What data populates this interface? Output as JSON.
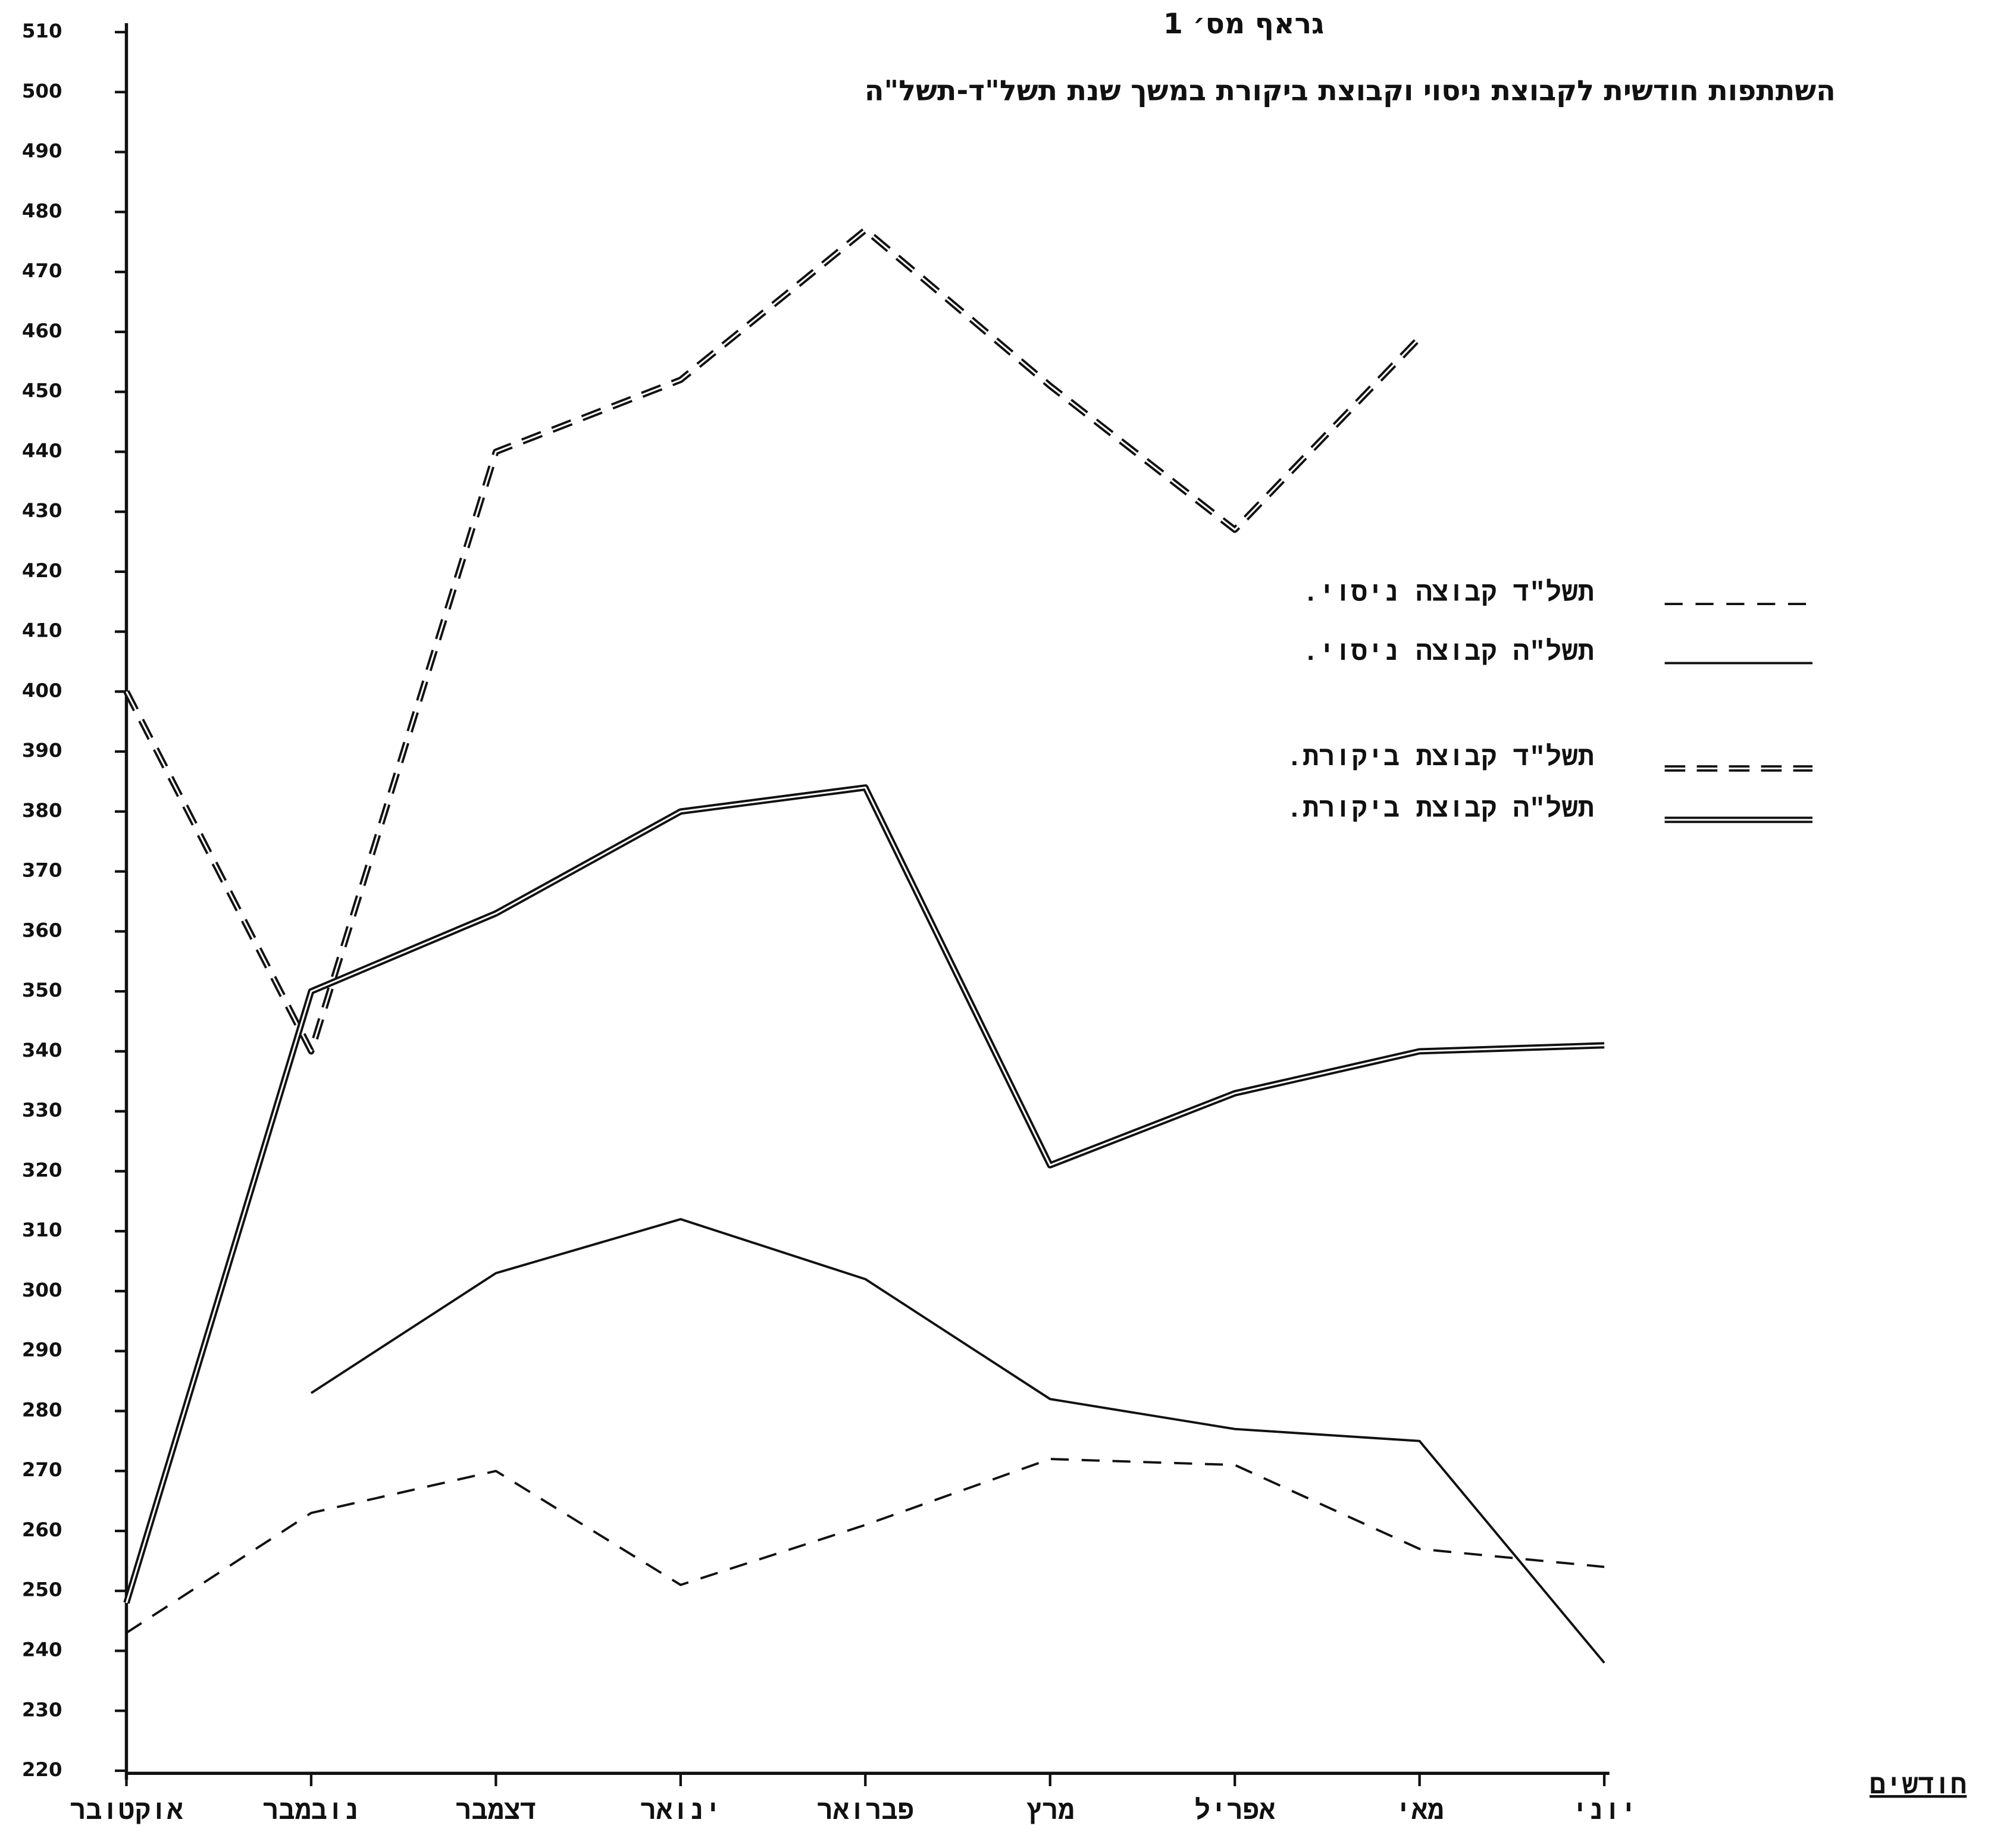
{
  "chart_data": {
    "type": "line",
    "title": "גראף מס׳ 1",
    "subtitle": "השתתפות חודשית לקבוצת ניסוי וקבוצת ביקורת במשך שנת תשל\"ד-תשל\"ה",
    "x_label": "חודשים",
    "categories": [
      "אוקטובר",
      "נובמבר",
      "דצמבר",
      "ינואר",
      "פברואר",
      "מרץ",
      "אפריל",
      "מאי",
      "יוני"
    ],
    "ylim": [
      220,
      510
    ],
    "yticks": [
      220,
      230,
      240,
      250,
      260,
      270,
      280,
      290,
      300,
      310,
      320,
      330,
      340,
      350,
      360,
      370,
      380,
      390,
      400,
      410,
      420,
      430,
      440,
      450,
      460,
      470,
      480,
      490,
      500,
      510
    ],
    "series": [
      {
        "name": "תשל\"ד קבוצה ניסוי.",
        "color": "#111111",
        "style": "dashed",
        "values": [
          243,
          263,
          270,
          251,
          261,
          272,
          271,
          257,
          254
        ]
      },
      {
        "name": "תשל\"ה קבוצה ניסוי.",
        "color": "#111111",
        "style": "solid",
        "values": [
          null,
          283,
          303,
          312,
          302,
          282,
          277,
          275,
          238
        ]
      },
      {
        "name": "תשל\"ד קבוצת ביקורת.",
        "color": "#111111",
        "style": "double-dashed",
        "values": [
          400,
          340,
          440,
          452,
          477,
          451,
          427,
          459,
          null
        ]
      },
      {
        "name": "תשל\"ה קבוצת ביקורת.",
        "color": "#111111",
        "style": "double",
        "values": [
          248,
          350,
          363,
          380,
          384,
          321,
          333,
          340,
          341
        ]
      }
    ]
  }
}
